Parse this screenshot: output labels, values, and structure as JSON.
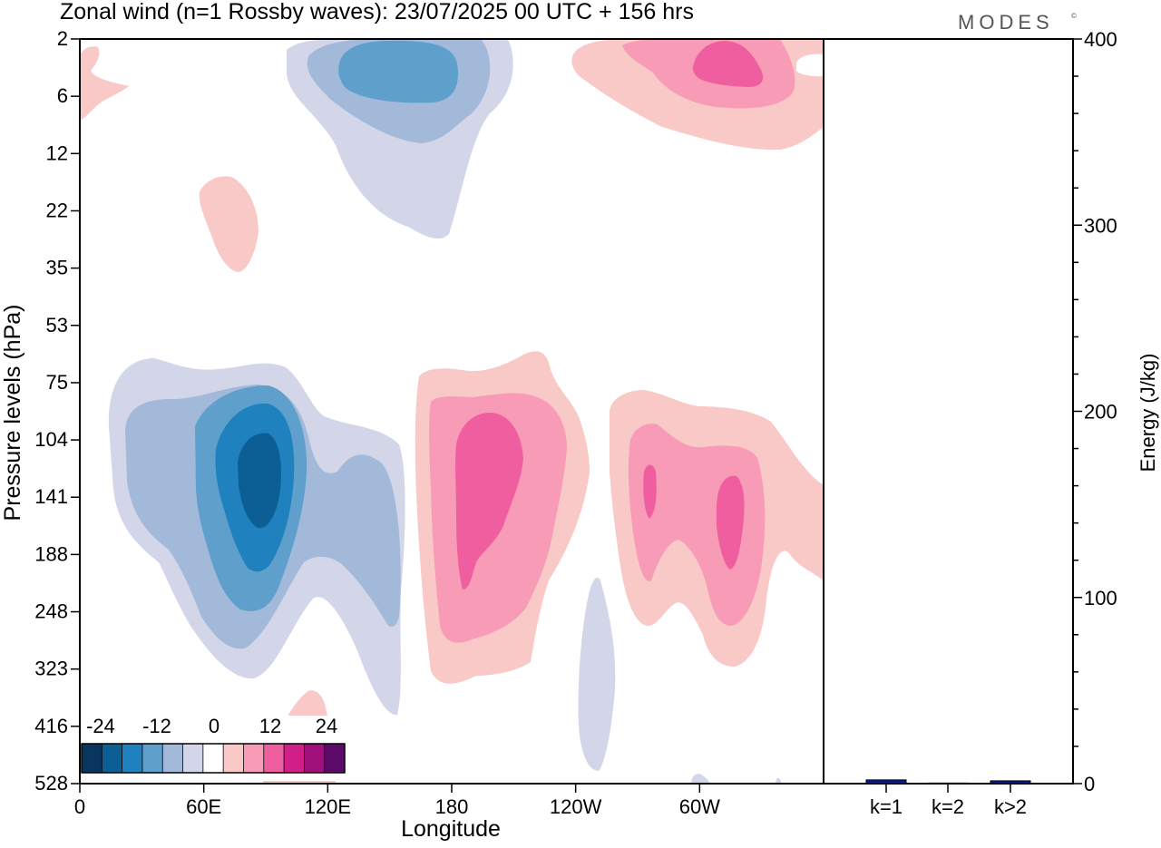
{
  "header": {
    "title": "Zonal wind (n=1 Rossby waves):  23/07/2025  00 UTC  + 156 hrs",
    "brand": "MODES",
    "brand_mark": "©"
  },
  "colors": {
    "neg": [
      "#08365e",
      "#0b5f95",
      "#1f82bf",
      "#5f9fcc",
      "#a2b9da",
      "#d3d6e8"
    ],
    "neutral": "#ffffff",
    "pos": [
      "#f9c9c7",
      "#f79bb6",
      "#ef5fa0",
      "#d21f88",
      "#a0107a",
      "#5b0a6a"
    ],
    "bar": "#0e1a8c"
  },
  "chart_data": [
    {
      "type": "contourf",
      "name": "zonal-wind-section",
      "xlabel": "Longitude",
      "ylabel": "Pressure levels (hPa)",
      "x_ticks": [
        "0",
        "60E",
        "120E",
        "180",
        "120W",
        "60W"
      ],
      "y_ticks": [
        "2",
        "6",
        "12",
        "22",
        "35",
        "53",
        "75",
        "104",
        "141",
        "188",
        "248",
        "323",
        "416",
        "528"
      ],
      "levels": [
        -30,
        -25,
        -20,
        -15,
        -10,
        -5,
        -2,
        2,
        5,
        10,
        15,
        20,
        25,
        30
      ],
      "colorbar": {
        "tick_labels": [
          "-24",
          "-12",
          "0",
          "12",
          "24"
        ]
      },
      "features": [
        {
          "sign": "negative",
          "lon": 83,
          "level_hpa": 141,
          "peak": -24
        },
        {
          "sign": "positive",
          "lon": 188,
          "level_hpa": 141,
          "peak": 15
        },
        {
          "sign": "positive",
          "lon": 263,
          "level_hpa": 141,
          "peak": 15
        },
        {
          "sign": "positive",
          "lon": 297,
          "level_hpa": 141,
          "peak": 15
        },
        {
          "sign": "negative",
          "lon": 167,
          "level_hpa": 3,
          "peak": -12
        },
        {
          "sign": "positive",
          "lon": 313,
          "level_hpa": 3,
          "peak": 15
        }
      ]
    },
    {
      "type": "bar",
      "name": "energy",
      "categories": [
        "k=1",
        "k=2",
        "k>2"
      ],
      "values": [
        2,
        0.3,
        1.5
      ],
      "ylabel": "Energy (J/kg)",
      "ylim": [
        0,
        400
      ],
      "y_ticks": [
        0,
        100,
        200,
        300,
        400
      ]
    }
  ]
}
